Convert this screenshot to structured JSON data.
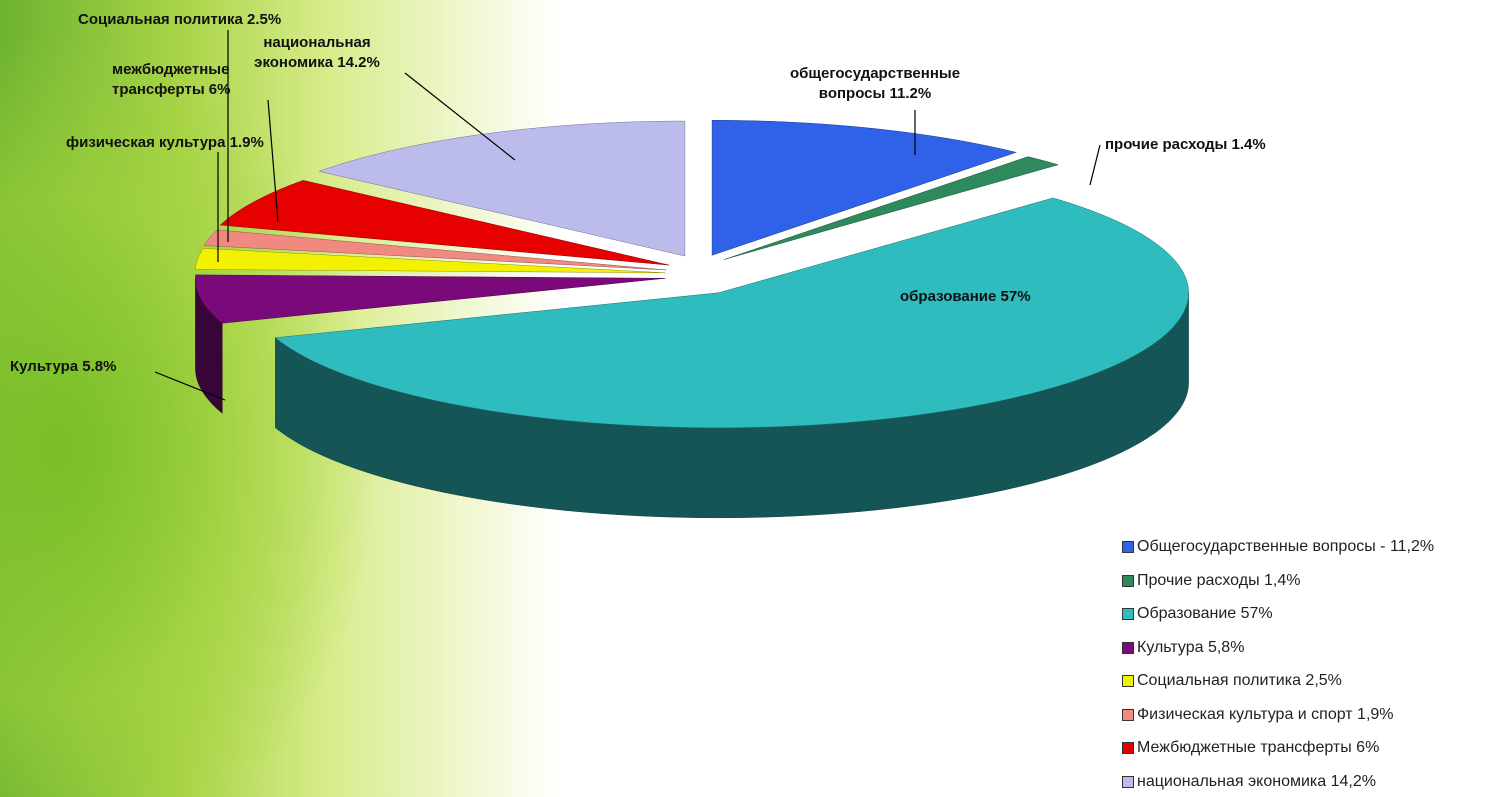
{
  "chart_data": {
    "type": "pie",
    "categories": [
      "Общегосударственные вопросы - 11,2%",
      "Прочие расходы 1,4%",
      "Образование 57%",
      "Культура 5,8%",
      "Социальная политика 2,5%",
      "Физическая культура и спорт 1,9%",
      "Межбюджетные трансферты 6%",
      "национальная экономика 14,2%"
    ],
    "values": [
      11.2,
      1.4,
      57,
      5.8,
      2.5,
      1.9,
      6,
      14.2
    ],
    "value_labels": [
      "общегосударственные вопросы 11.2%",
      "прочие расходы 1.4%",
      "образование 57%",
      "Культура 5.8%",
      "Социальная политика 2.5%",
      "физическая культура 1.9%",
      "межбюджетные трансферты 6%",
      "национальная экономика 14.2%"
    ],
    "colors": [
      "#2f62e8",
      "#2e8a5c",
      "#2fbcbf",
      "#7a0a7a",
      "#f2f200",
      "#f08a80",
      "#e60000",
      "#bcbcec"
    ],
    "legend": "lower right"
  }
}
